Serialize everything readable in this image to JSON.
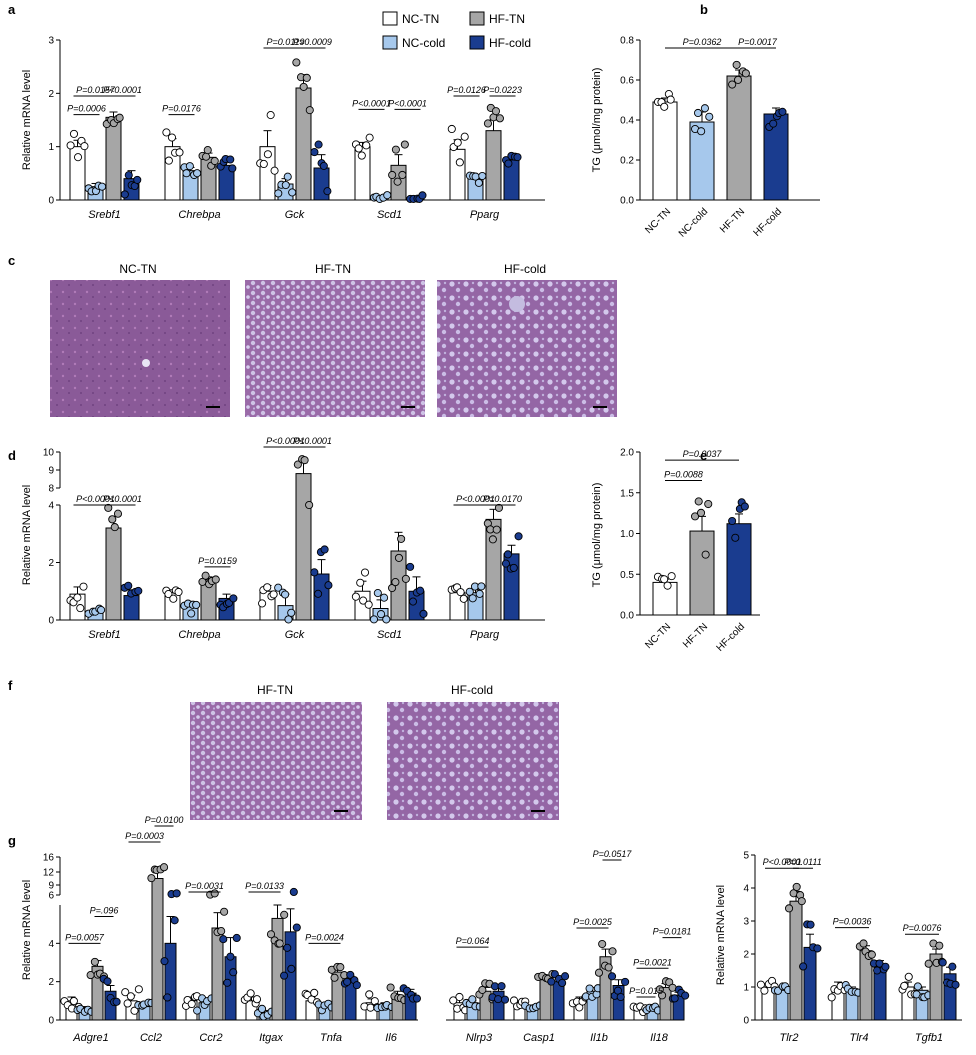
{
  "colors": {
    "NC-TN": "#ffffff",
    "NC-cold": "#a6c8ec",
    "HF-TN": "#a6a6a6",
    "HF-cold": "#1a3c8f"
  },
  "letters": {
    "a": "a",
    "b": "b",
    "c": "c",
    "d": "d",
    "e": "e",
    "f": "f",
    "g": "g"
  },
  "legend": [
    "NC-TN",
    "NC-cold",
    "HF-TN",
    "HF-cold"
  ],
  "images": {
    "c": [
      "NC-TN",
      "HF-TN",
      "HF-cold"
    ],
    "f": [
      "HF-TN",
      "HF-cold"
    ]
  },
  "chart_data": [
    {
      "id": "a",
      "type": "bar",
      "ylabel": "Relative mRNA level",
      "ylim": [
        0,
        3
      ],
      "yticks": [
        "0",
        "1",
        "2",
        "3"
      ],
      "categories": [
        "Srebf1",
        "Chrebpa",
        "Gck",
        "Scd1",
        "Pparg"
      ],
      "groups": [
        "NC-TN",
        "NC-cold",
        "HF-TN",
        "HF-cold"
      ],
      "values": [
        [
          1.0,
          0.25,
          1.55,
          0.4
        ],
        [
          1.0,
          0.55,
          0.8,
          0.65
        ],
        [
          1.0,
          0.3,
          2.1,
          0.6
        ],
        [
          1.0,
          0.05,
          0.65,
          0.05
        ],
        [
          0.95,
          0.4,
          1.3,
          0.75
        ]
      ],
      "errors": [
        [
          0.12,
          0.06,
          0.1,
          0.15
        ],
        [
          0.15,
          0.06,
          0.08,
          0.06
        ],
        [
          0.3,
          0.1,
          0.25,
          0.25
        ],
        [
          0.08,
          0.02,
          0.2,
          0.02
        ],
        [
          0.18,
          0.04,
          0.2,
          0.05
        ]
      ],
      "annotations": [
        {
          "text": "P=0.0006",
          "cat": 0,
          "g1": 0,
          "g2": 1,
          "y": 1.6
        },
        {
          "text": "P=0.0157",
          "cat": 0,
          "g1": 0,
          "g2": 2,
          "y": 1.95
        },
        {
          "text": "P<0.0001",
          "cat": 0,
          "g1": 2,
          "g2": 3,
          "y": 1.95
        },
        {
          "text": "P=0.0176",
          "cat": 1,
          "g1": 0,
          "g2": 1,
          "y": 1.6
        },
        {
          "text": "P=0.0119",
          "cat": 2,
          "g1": 0,
          "g2": 2,
          "y": 2.85
        },
        {
          "text": "P=0.0009",
          "cat": 2,
          "g1": 2,
          "g2": 3,
          "y": 2.85
        },
        {
          "text": "P<0.0001",
          "cat": 3,
          "g1": 0,
          "g2": 1,
          "y": 1.7
        },
        {
          "text": "P<0.0001",
          "cat": 3,
          "g1": 2,
          "g2": 3,
          "y": 1.7
        },
        {
          "text": "P=0.0126",
          "cat": 4,
          "g1": 0,
          "g2": 1,
          "y": 1.95
        },
        {
          "text": "P=0.0223",
          "cat": 4,
          "g1": 2,
          "g2": 3,
          "y": 1.95
        }
      ]
    },
    {
      "id": "b",
      "type": "bar",
      "ylabel": "TG (μmol/mg protein)",
      "ylim": [
        0,
        0.8
      ],
      "yticks": [
        "0.0",
        "0.2",
        "0.4",
        "0.6",
        "0.8"
      ],
      "categories": [
        "NC-TN",
        "NC-cold",
        "HF-TN",
        "HF-cold"
      ],
      "values": [
        0.49,
        0.39,
        0.62,
        0.43
      ],
      "errors": [
        0.02,
        0.05,
        0.03,
        0.03
      ],
      "annotations": [
        {
          "text": "P=0.0362",
          "i1": 0,
          "i2": 2,
          "y": 0.78
        },
        {
          "text": "P=0.0017",
          "i1": 2,
          "i2": 3,
          "y": 0.78
        }
      ]
    },
    {
      "id": "d",
      "type": "bar",
      "ylabel": "Relative mRNA level",
      "yticks": [
        "0",
        "2",
        "4",
        "8",
        "9",
        "10"
      ],
      "categories": [
        "Srebf1",
        "Chrebpa",
        "Gck",
        "Scd1",
        "Pparg"
      ],
      "groups": [
        "NC-TN",
        "NC-cold",
        "HF-TN",
        "HF-cold"
      ],
      "values": [
        [
          0.9,
          0.3,
          3.2,
          0.85
        ],
        [
          0.95,
          0.5,
          1.4,
          0.75
        ],
        [
          1.0,
          0.5,
          8.8,
          1.6
        ],
        [
          1.0,
          0.4,
          2.4,
          1.0
        ],
        [
          0.95,
          0.95,
          3.5,
          2.3
        ]
      ],
      "errors": [
        [
          0.25,
          0.05,
          0.4,
          0.2
        ],
        [
          0.1,
          0.15,
          0.1,
          0.15
        ],
        [
          0.2,
          0.4,
          0.6,
          0.5
        ],
        [
          0.35,
          0.3,
          0.65,
          0.5
        ],
        [
          0.1,
          0.1,
          0.35,
          0.3
        ]
      ],
      "annotations": [
        {
          "text": "P<0.0001",
          "cat": 0,
          "g1": 0,
          "g2": 2,
          "y": "4.5"
        },
        {
          "text": "P<0.0001",
          "cat": 0,
          "g1": 2,
          "g2": 3,
          "y": "4.5"
        },
        {
          "text": "P=0.0159",
          "cat": 1,
          "g1": 2,
          "g2": 3,
          "y": "1.85"
        },
        {
          "text": "P<0.0001",
          "cat": 2,
          "g1": 0,
          "g2": 2,
          "y": "top"
        },
        {
          "text": "P<0.0001",
          "cat": 2,
          "g1": 2,
          "g2": 3,
          "y": "top"
        },
        {
          "text": "P<0.0001",
          "cat": 4,
          "g1": 0,
          "g2": 2,
          "y": "4.5"
        },
        {
          "text": "P=0.0170",
          "cat": 4,
          "g1": 2,
          "g2": 3,
          "y": "4.5"
        }
      ]
    },
    {
      "id": "e",
      "type": "bar",
      "ylabel": "TG (μmol/mg protein)",
      "ylim": [
        0,
        2.0
      ],
      "yticks": [
        "0.0",
        "0.5",
        "1.0",
        "1.5",
        "2.0"
      ],
      "categories": [
        "NC-TN",
        "HF-TN",
        "HF-cold"
      ],
      "colors": [
        "NC-TN",
        "HF-TN",
        "HF-cold"
      ],
      "values": [
        0.4,
        1.03,
        1.12
      ],
      "errors": [
        0.04,
        0.18,
        0.12
      ],
      "annotations": [
        {
          "text": "P=0.0088",
          "i1": 0,
          "i2": 1,
          "y": 1.65
        },
        {
          "text": "P=0.0037",
          "i1": 0,
          "i2": 2,
          "y": 1.9
        }
      ]
    },
    {
      "id": "g1",
      "type": "bar",
      "ylabel": "Relative mRNA level",
      "yticks": [
        "0",
        "2",
        "4",
        "6",
        "9",
        "12",
        "16"
      ],
      "categories": [
        "Adgre1",
        "Ccl2",
        "Ccr2",
        "Itgax",
        "Tnfa",
        "Il6",
        "Nlrp3",
        "Casp1",
        "Il1b",
        "Il18"
      ],
      "groups": [
        "NC-TN",
        "NC-cold",
        "HF-TN",
        "HF-cold"
      ],
      "values": [
        [
          1.0,
          0.6,
          2.8,
          1.5
        ],
        [
          1.0,
          0.7,
          10.5,
          4.0
        ],
        [
          1.0,
          0.9,
          4.8,
          3.3
        ],
        [
          1.0,
          0.4,
          5.3,
          4.6
        ],
        [
          1.0,
          0.7,
          2.5,
          2.0
        ],
        [
          0.9,
          0.8,
          1.3,
          1.4
        ],
        [
          0.9,
          0.9,
          1.5,
          1.5
        ],
        [
          0.8,
          0.6,
          2.1,
          2.0
        ],
        [
          1.0,
          1.5,
          3.3,
          1.8
        ],
        [
          0.6,
          0.5,
          1.7,
          1.3
        ]
      ],
      "errors": [
        [
          0.2,
          0.1,
          0.3,
          0.3
        ],
        [
          0.3,
          0.1,
          1.5,
          1.4
        ],
        [
          0.2,
          0.2,
          0.8,
          1.0
        ],
        [
          0.2,
          0.1,
          0.7,
          1.2
        ],
        [
          0.2,
          0.1,
          0.3,
          0.3
        ],
        [
          0.2,
          0.1,
          0.2,
          0.2
        ],
        [
          0.2,
          0.1,
          0.2,
          0.2
        ],
        [
          0.1,
          0.1,
          0.2,
          0.2
        ],
        [
          0.2,
          0.2,
          0.4,
          0.3
        ],
        [
          0.1,
          0.1,
          0.2,
          0.15
        ]
      ],
      "annotations": [
        {
          "text": "P=0.0057",
          "cat": 0,
          "g1": 0,
          "g2": 2,
          "y": 4.0
        },
        {
          "text": "P=.096",
          "cat": 0,
          "g1": 2,
          "g2": 3,
          "y": 5.4
        },
        {
          "text": "P=0.0003",
          "cat": 1,
          "g1": 0,
          "g2": 2,
          "y": "topA"
        },
        {
          "text": "P=0.0100",
          "cat": 1,
          "g1": 2,
          "g2": 3,
          "y": "topB"
        },
        {
          "text": "P=0.0031",
          "cat": 2,
          "g1": 0,
          "g2": 2,
          "y": "top0"
        },
        {
          "text": "P=0.0133",
          "cat": 3,
          "g1": 0,
          "g2": 2,
          "y": "top0"
        },
        {
          "text": "P=0.0024",
          "cat": 4,
          "g1": 0,
          "g2": 2,
          "y": 4.0
        },
        {
          "text": "P=0.064",
          "cat": 6,
          "g1": 0,
          "g2": 2,
          "y": 3.8
        },
        {
          "text": "P=0.0025",
          "cat": 8,
          "g1": 0,
          "g2": 2,
          "y": 4.8
        },
        {
          "text": "P=0.0517",
          "cat": 8,
          "g1": 2,
          "g2": 3,
          "y": "top0"
        },
        {
          "text": "P=0.015",
          "cat": 9,
          "g1": 0,
          "g2": 1,
          "y": 1.2
        },
        {
          "text": "P=0.0021",
          "cat": 9,
          "g1": 0,
          "g2": 2,
          "y": 2.7
        },
        {
          "text": "P=0.0181",
          "cat": 9,
          "g1": 2,
          "g2": 3,
          "y": 4.3
        }
      ]
    },
    {
      "id": "g2",
      "type": "bar",
      "ylabel": "Relative mRNA level",
      "ylim": [
        0,
        5
      ],
      "yticks": [
        "0",
        "1",
        "2",
        "3",
        "4",
        "5"
      ],
      "categories": [
        "Tlr2",
        "Tlr4",
        "Tgfb1"
      ],
      "groups": [
        "NC-TN",
        "NC-cold",
        "HF-TN",
        "HF-cold"
      ],
      "values": [
        [
          1.0,
          0.9,
          3.6,
          2.2
        ],
        [
          1.0,
          0.9,
          2.1,
          1.7
        ],
        [
          1.0,
          0.9,
          2.0,
          1.4
        ]
      ],
      "errors": [
        [
          0.1,
          0.1,
          0.3,
          0.4
        ],
        [
          0.15,
          0.1,
          0.15,
          0.1
        ],
        [
          0.15,
          0.1,
          0.15,
          0.2
        ]
      ],
      "annotations": [
        {
          "text": "P<0.0001",
          "cat": 0,
          "g1": 0,
          "g2": 2,
          "y": 4.6
        },
        {
          "text": "P=0.0111",
          "cat": 0,
          "g1": 2,
          "g2": 3,
          "y": 4.6
        },
        {
          "text": "P=0.0036",
          "cat": 1,
          "g1": 0,
          "g2": 2,
          "y": 2.8
        },
        {
          "text": "P=0.0076",
          "cat": 2,
          "g1": 0,
          "g2": 2,
          "y": 2.6
        }
      ]
    }
  ]
}
